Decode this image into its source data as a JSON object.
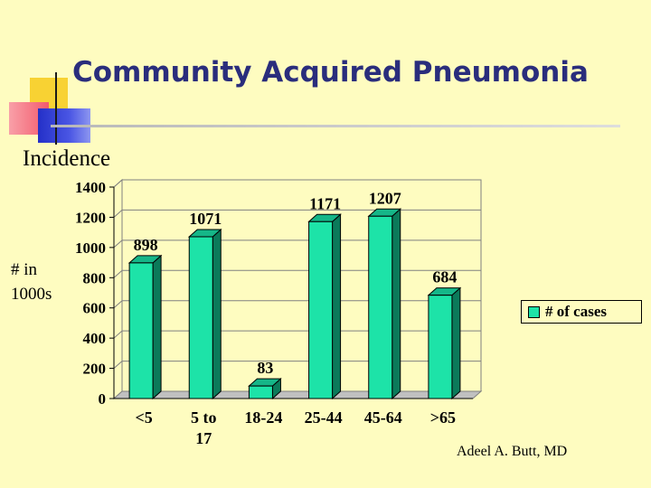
{
  "slide": {
    "title": "Community Acquired Pneumonia",
    "subtitle": "Incidence",
    "ylabel_lines": [
      "# in",
      "1000s"
    ],
    "author": "Adeel A. Butt, MD"
  },
  "colors": {
    "background": "#fefcc0",
    "bar": "#1de3a8",
    "title": "#2a2d7c"
  },
  "chart_data": {
    "type": "bar",
    "title": "",
    "ylabel": "# in 1000s",
    "categories": [
      [
        "<5"
      ],
      [
        "5 to",
        "17"
      ],
      [
        "18-24"
      ],
      [
        "25-44"
      ],
      [
        "45-64"
      ],
      [
        ">65"
      ]
    ],
    "series": [
      {
        "name": "# of cases",
        "values": [
          898,
          1071,
          83,
          1171,
          1207,
          684
        ]
      }
    ],
    "ylim": [
      0,
      1400
    ],
    "yticks": [
      0,
      200,
      400,
      600,
      800,
      1000,
      1200,
      1400
    ],
    "grid": true,
    "legend": "right"
  }
}
